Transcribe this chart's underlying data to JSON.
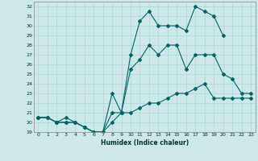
{
  "xlabel": "Humidex (Indice chaleur)",
  "bg_color": "#cce8e8",
  "grid_color": "#b0d4d4",
  "line_color": "#006666",
  "xlim": [
    -0.5,
    23.5
  ],
  "ylim": [
    19,
    32.5
  ],
  "xticks": [
    0,
    1,
    2,
    3,
    4,
    5,
    6,
    7,
    8,
    9,
    10,
    11,
    12,
    13,
    14,
    15,
    16,
    17,
    18,
    19,
    20,
    21,
    22,
    23
  ],
  "yticks": [
    19,
    20,
    21,
    22,
    23,
    24,
    25,
    26,
    27,
    28,
    29,
    30,
    31,
    32
  ],
  "series": [
    {
      "x": [
        0,
        1,
        2,
        3,
        4,
        5,
        6,
        7,
        8,
        9,
        10,
        11,
        12,
        13,
        14,
        15,
        16,
        17,
        18,
        19,
        20
      ],
      "y": [
        20.5,
        20.5,
        20.0,
        20.5,
        20.0,
        19.5,
        19.0,
        19.0,
        23.0,
        21.0,
        27.0,
        30.5,
        31.5,
        30.0,
        30.0,
        30.0,
        29.5,
        32.0,
        31.5,
        31.0,
        29.0
      ]
    },
    {
      "x": [
        0,
        1,
        2,
        3,
        4,
        5,
        6,
        7,
        8,
        9,
        10,
        11,
        12,
        13,
        14,
        15,
        16,
        17,
        18,
        19,
        20,
        21,
        22,
        23
      ],
      "y": [
        20.5,
        20.5,
        20.0,
        20.0,
        20.0,
        19.5,
        19.0,
        19.0,
        21.0,
        21.0,
        25.5,
        26.5,
        28.0,
        27.0,
        28.0,
        28.0,
        25.5,
        27.0,
        27.0,
        27.0,
        25.0,
        24.5,
        23.0,
        23.0
      ]
    },
    {
      "x": [
        0,
        1,
        2,
        3,
        4,
        5,
        6,
        7,
        8,
        9,
        10,
        11,
        12,
        13,
        14,
        15,
        16,
        17,
        18,
        19,
        20,
        21,
        22,
        23
      ],
      "y": [
        20.5,
        20.5,
        20.0,
        20.0,
        20.0,
        19.5,
        19.0,
        19.0,
        20.0,
        21.0,
        21.0,
        21.5,
        22.0,
        22.0,
        22.5,
        23.0,
        23.0,
        23.5,
        24.0,
        22.5,
        22.5,
        22.5,
        22.5,
        22.5
      ]
    }
  ]
}
